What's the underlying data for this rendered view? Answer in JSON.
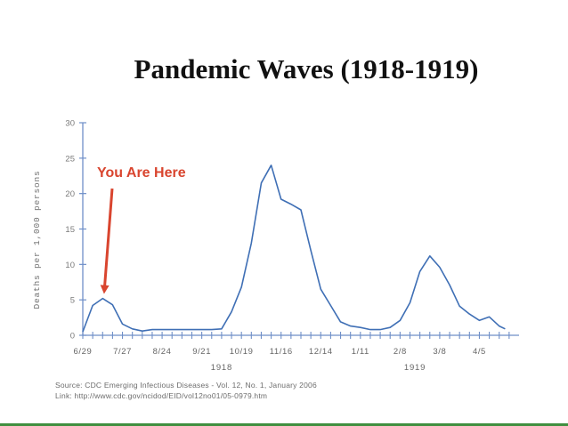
{
  "title": "Pandemic Waves (1918-1919)",
  "chart_data": {
    "type": "line",
    "ylabel": "Deaths per 1,000 persons",
    "ylim": [
      0,
      30
    ],
    "yticks": [
      0,
      5,
      10,
      15,
      20,
      25,
      30
    ],
    "xlim": [
      0,
      44
    ],
    "xtick_labels": [
      {
        "label": "6/29",
        "x": 0
      },
      {
        "label": "7/27",
        "x": 4
      },
      {
        "label": "8/24",
        "x": 8
      },
      {
        "label": "9/21",
        "x": 12
      },
      {
        "label": "10/19",
        "x": 16
      },
      {
        "label": "11/16",
        "x": 20
      },
      {
        "label": "12/14",
        "x": 24
      },
      {
        "label": "1/11",
        "x": 28
      },
      {
        "label": "2/8",
        "x": 32
      },
      {
        "label": "3/8",
        "x": 36
      },
      {
        "label": "4/5",
        "x": 40
      }
    ],
    "year_labels": [
      {
        "label": "1918",
        "x": 14
      },
      {
        "label": "1919",
        "x": 33.5
      }
    ],
    "series": [
      {
        "color": "#3f6fb5",
        "x": [
          0,
          1,
          2,
          3,
          4,
          5,
          6,
          7,
          8,
          9,
          10,
          11,
          12,
          13,
          14,
          15,
          16,
          17,
          18,
          19,
          20,
          21,
          22,
          23,
          24,
          25,
          26,
          27,
          28,
          29,
          30,
          31,
          32,
          33,
          34,
          35,
          36,
          37,
          38,
          39,
          40,
          41,
          42,
          42.6
        ],
        "y": [
          0.5,
          4.2,
          5.2,
          4.3,
          1.6,
          0.9,
          0.6,
          0.8,
          0.8,
          0.8,
          0.8,
          0.8,
          0.8,
          0.8,
          0.9,
          3.3,
          6.8,
          13,
          21.5,
          24,
          19.2,
          18.5,
          17.7,
          12,
          6.5,
          4.2,
          1.9,
          1.3,
          1.1,
          0.8,
          0.8,
          1.1,
          2.1,
          4.6,
          9,
          11.2,
          9.6,
          7.1,
          4.1,
          3,
          2.1,
          2.6,
          1.3,
          0.9
        ]
      }
    ],
    "annotation": {
      "text": "You Are Here",
      "x": 2,
      "y": 5.2,
      "color": "#d9452f"
    }
  },
  "source": {
    "line1": "Source: CDC Emerging Infectious Diseases - Vol. 12, No. 1, January 2006",
    "line2": "Link: http://www.cdc.gov/ncidod/EID/vol12no01/05-0979.htm"
  }
}
